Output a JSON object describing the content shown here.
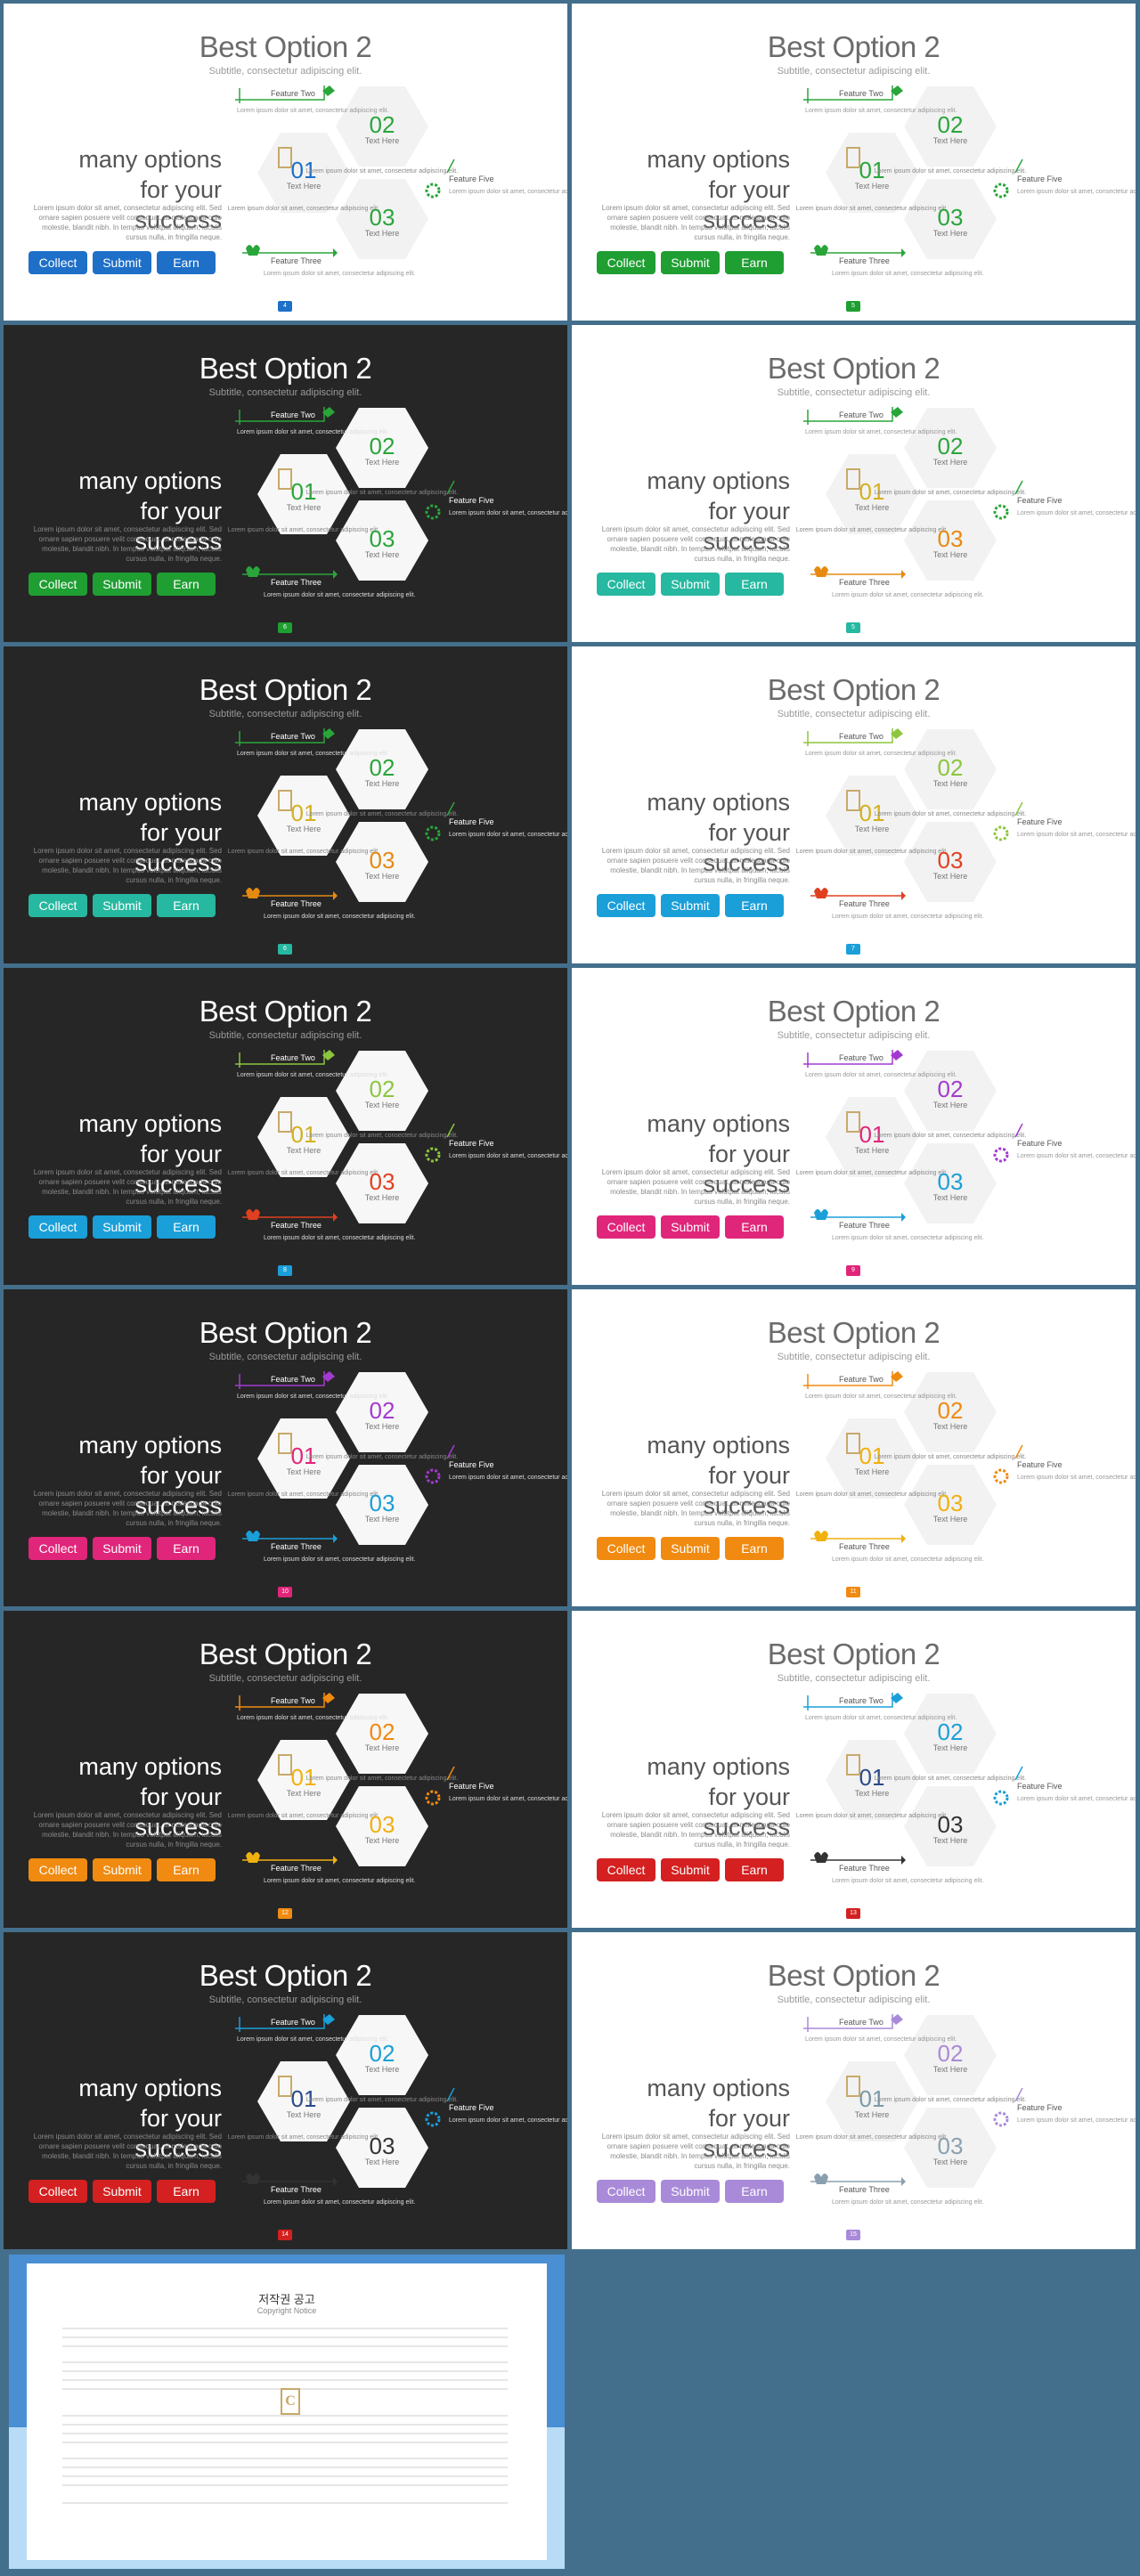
{
  "template": {
    "title": "Best Option 2",
    "subtitle": "Subtitle, consectetur adipiscing elit.",
    "heading_lines": [
      "many options",
      "for your",
      "success"
    ],
    "body_text": "Lorem ipsum dolor sit amet, consectetur adipiscing elit. Sed ornare sapien posuere velit consequat, at malesuada odio molestie, blandit nibh. In tempus volutpat aliquam, iaculis cursus nulla, in fringilla neque.",
    "buttons": [
      "Collect",
      "Submit",
      "Earn"
    ],
    "hex_01": "01",
    "hex_02": "02",
    "hex_03": "03",
    "hex_label": "Text Here",
    "hex_desc": "Lorem ipsum dolor sit amet, consectetur adipiscing elit.",
    "feature_two": "Feature Two",
    "feature_three": "Feature Three",
    "feature_five": "Feature Five",
    "feature_desc": "Lorem ipsum dolor sit amet, consectetur adipiscing elit."
  },
  "slides": [
    {
      "theme": "light",
      "accent": "#1e6fc8",
      "c1": "#1e6fc8",
      "c2": "#2aa53a",
      "c3": "#2aa53a",
      "page": "4"
    },
    {
      "theme": "light",
      "accent": "#1f9e32",
      "c1": "#2aa53a",
      "c2": "#2aa53a",
      "c3": "#2aa53a",
      "page": "5"
    },
    {
      "theme": "dark",
      "accent": "#1f9e32",
      "c1": "#2aa53a",
      "c2": "#2aa53a",
      "c3": "#2aa53a",
      "page": "6"
    },
    {
      "theme": "light",
      "accent": "#26b8a0",
      "c1": "#d4b020",
      "c2": "#2aa53a",
      "c3": "#e68a10",
      "page": "5"
    },
    {
      "theme": "dark",
      "accent": "#26b8a0",
      "c1": "#d4b020",
      "c2": "#2aa53a",
      "c3": "#e68a10",
      "page": "6"
    },
    {
      "theme": "light",
      "accent": "#1a9fd8",
      "c1": "#d4b020",
      "c2": "#8cc63e",
      "c3": "#e04020",
      "page": "7"
    },
    {
      "theme": "dark",
      "accent": "#1a9fd8",
      "c1": "#d4b020",
      "c2": "#8cc63e",
      "c3": "#e04020",
      "page": "8"
    },
    {
      "theme": "light",
      "accent": "#e0267a",
      "c1": "#e0267a",
      "c2": "#a33ad0",
      "c3": "#1a9fd8",
      "page": "9"
    },
    {
      "theme": "dark",
      "accent": "#e0267a",
      "c1": "#e0267a",
      "c2": "#a33ad0",
      "c3": "#1a9fd8",
      "page": "10"
    },
    {
      "theme": "light",
      "accent": "#f08a10",
      "c1": "#f0b010",
      "c2": "#f08a10",
      "c3": "#f0b010",
      "page": "11"
    },
    {
      "theme": "dark",
      "accent": "#f08a10",
      "c1": "#f0b010",
      "c2": "#f08a10",
      "c3": "#f0b010",
      "page": "12"
    },
    {
      "theme": "light",
      "accent": "#d42020",
      "c1": "#2a4a8a",
      "c2": "#1a9fd8",
      "c3": "#333333",
      "page": "13"
    },
    {
      "theme": "dark",
      "accent": "#d42020",
      "c1": "#2a4a8a",
      "c2": "#1a9fd8",
      "c3": "#333333",
      "page": "14"
    },
    {
      "theme": "light",
      "accent": "#a98ad8",
      "c1": "#7a9aa8",
      "c2": "#a98ad8",
      "c3": "#8aa0b0",
      "page": "15"
    }
  ],
  "copyright": {
    "title": "저작권 공고",
    "subtitle": "Copyright Notice",
    "logo_letter": "C"
  }
}
